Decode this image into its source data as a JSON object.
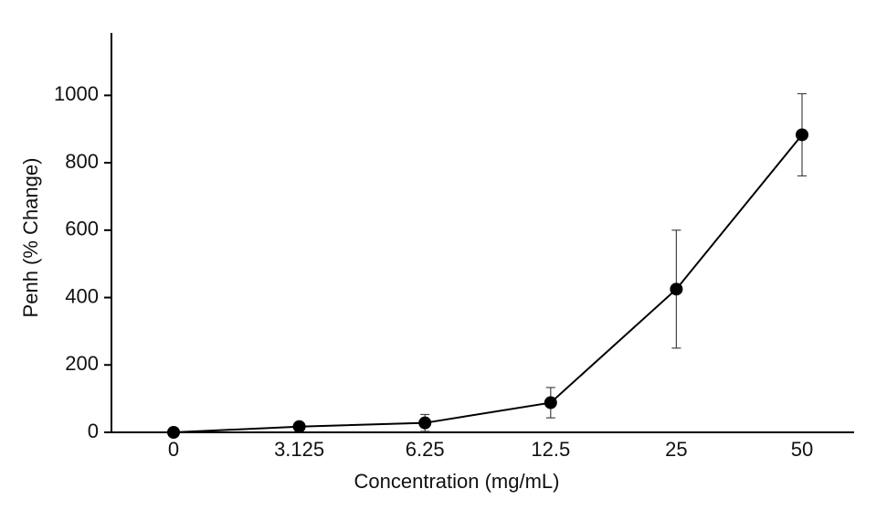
{
  "chart_data": {
    "type": "line",
    "xlabel": "Concentration (mg/mL)",
    "ylabel": "Penh (% Change)",
    "categories": [
      "0",
      "3.125",
      "6.25",
      "12.5",
      "25",
      "50"
    ],
    "values": [
      0,
      17,
      28,
      88,
      425,
      883
    ],
    "errors": [
      0,
      0,
      25,
      45,
      175,
      122
    ],
    "color": "#000000",
    "ylim": [
      0,
      1180
    ],
    "yticks": [
      0,
      200,
      400,
      600,
      800,
      1000
    ]
  }
}
